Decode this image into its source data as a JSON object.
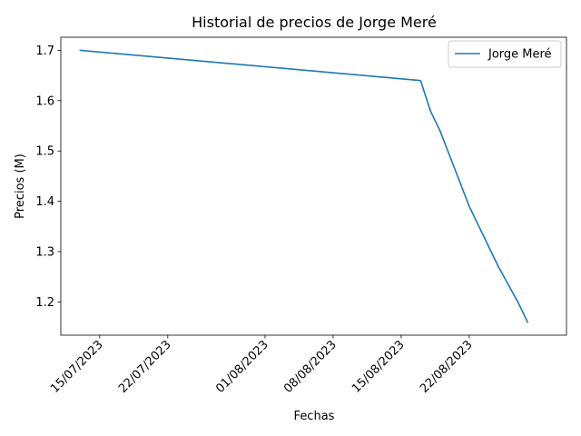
{
  "chart_data": {
    "type": "line",
    "title": "Historial de precios de Jorge Meré",
    "xlabel": "Fechas",
    "ylabel": "Precios (M)",
    "x_type": "date",
    "x_ticks": [
      "15/07/2023",
      "22/07/2023",
      "01/08/2023",
      "08/08/2023",
      "15/08/2023",
      "22/08/2023"
    ],
    "y_ticks": [
      "1.2",
      "1.3",
      "1.4",
      "1.5",
      "1.6",
      "1.7"
    ],
    "xlim": [
      "2023-07-11",
      "2023-09-01"
    ],
    "ylim": [
      1.134,
      1.726
    ],
    "grid": false,
    "legend": {
      "position": "top-right"
    },
    "series": [
      {
        "name": "Jorge Meré",
        "color": "#1f77b4",
        "x": [
          "2023-07-13",
          "2023-08-17",
          "2023-08-18",
          "2023-08-19",
          "2023-08-20",
          "2023-08-21",
          "2023-08-22",
          "2023-08-23",
          "2023-08-24",
          "2023-08-25",
          "2023-08-26",
          "2023-08-27",
          "2023-08-28"
        ],
        "y": [
          1.7,
          1.64,
          1.58,
          1.54,
          1.49,
          1.44,
          1.39,
          1.35,
          1.31,
          1.27,
          1.235,
          1.2,
          1.16
        ]
      }
    ]
  }
}
